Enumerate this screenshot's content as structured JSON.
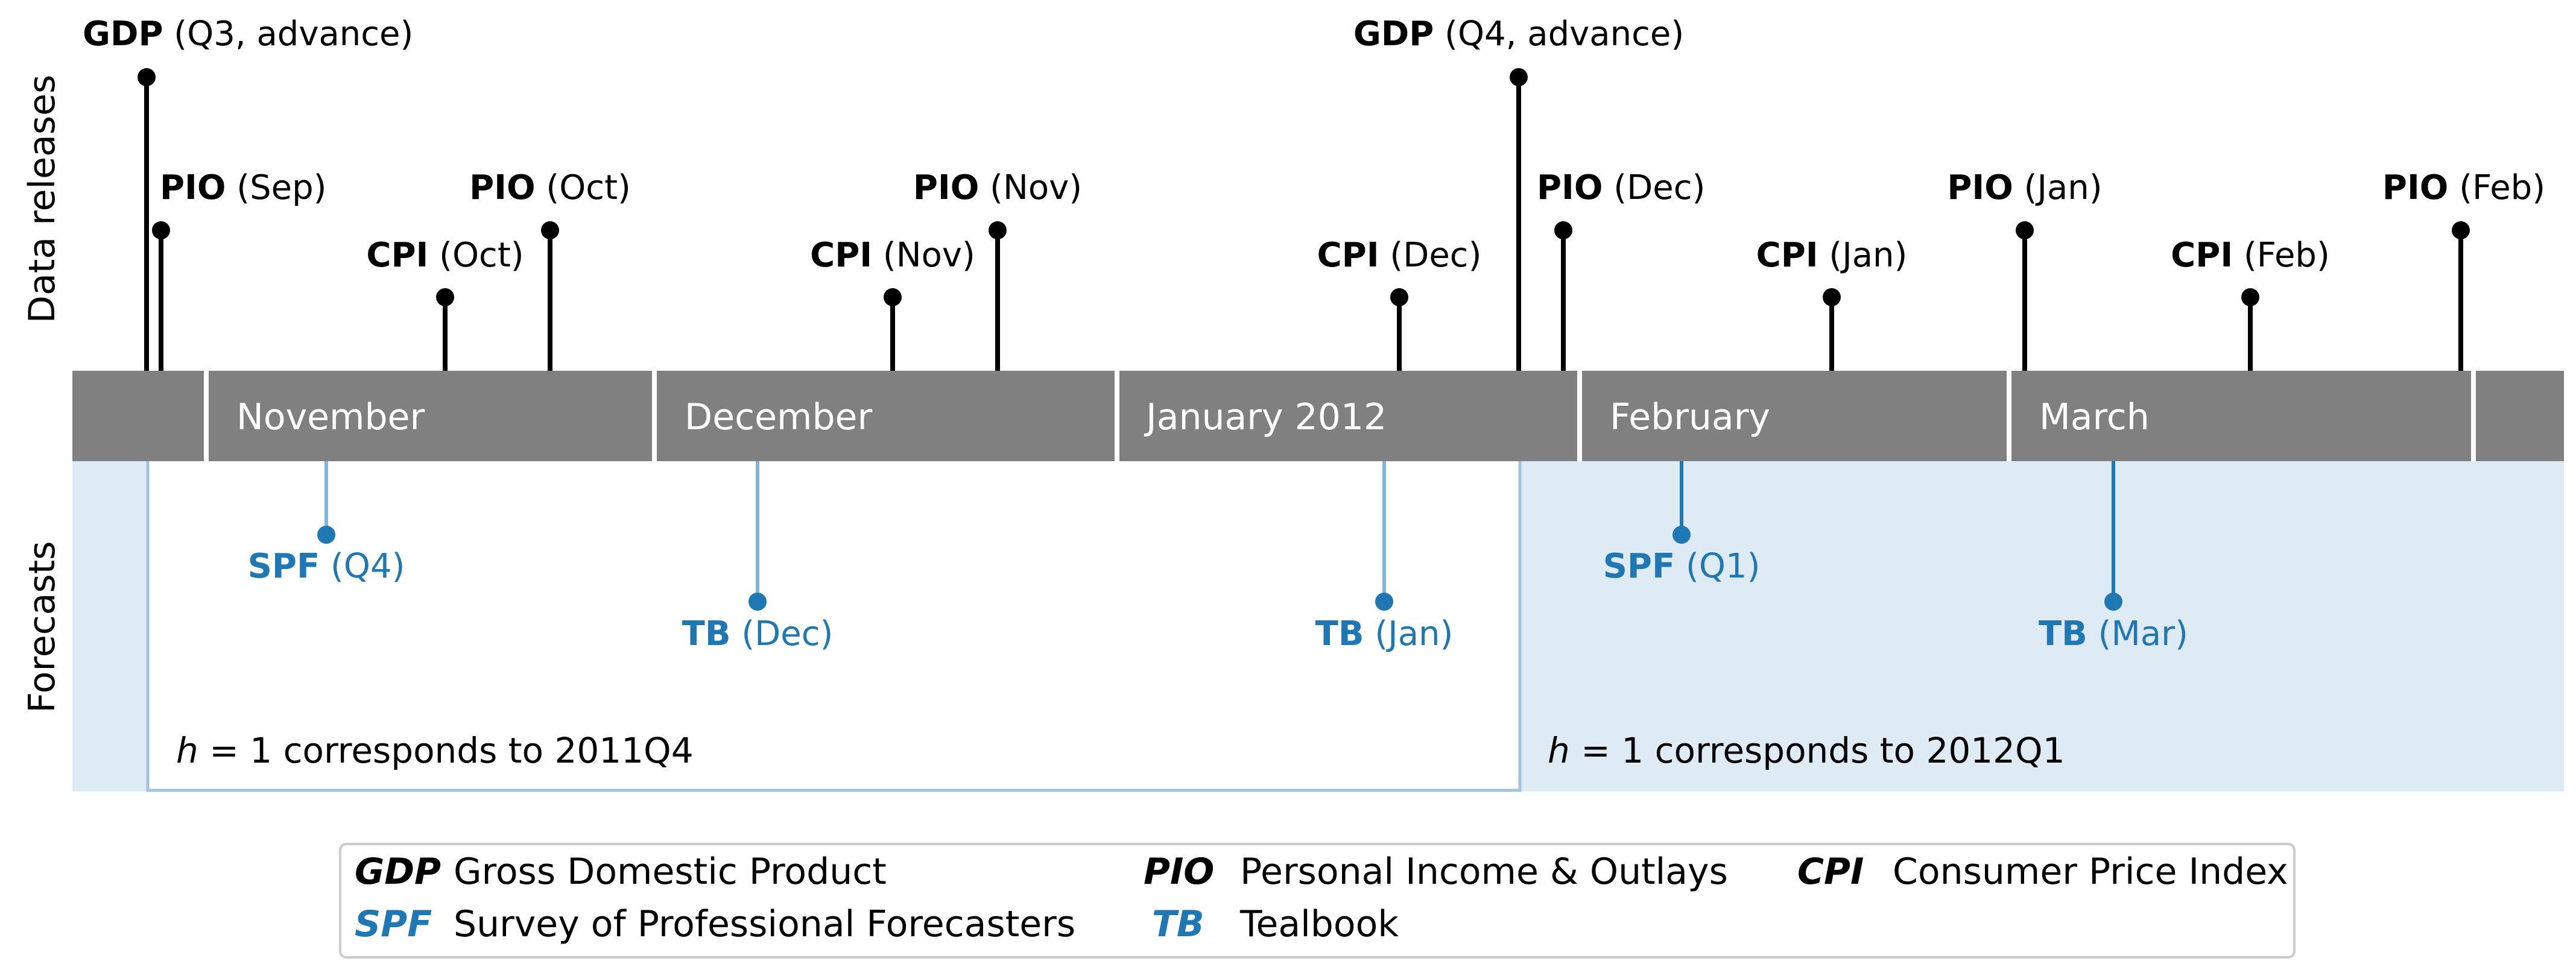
{
  "axis_labels": {
    "top": "Data releases",
    "bottom": "Forecasts"
  },
  "months": [
    {
      "label": ""
    },
    {
      "label": "November"
    },
    {
      "label": "December"
    },
    {
      "label": "January 2012"
    },
    {
      "label": "February"
    },
    {
      "label": "March"
    },
    {
      "label": ""
    }
  ],
  "releases": [
    {
      "abbr": "GDP",
      "detail": " (Q3, advance)"
    },
    {
      "abbr": "PIO",
      "detail": " (Sep)"
    },
    {
      "abbr": "CPI",
      "detail": " (Oct)"
    },
    {
      "abbr": "PIO",
      "detail": " (Oct)"
    },
    {
      "abbr": "CPI",
      "detail": " (Nov)"
    },
    {
      "abbr": "PIO",
      "detail": " (Nov)"
    },
    {
      "abbr": "CPI",
      "detail": " (Dec)"
    },
    {
      "abbr": "GDP",
      "detail": " (Q4, advance)"
    },
    {
      "abbr": "PIO",
      "detail": " (Dec)"
    },
    {
      "abbr": "CPI",
      "detail": " (Jan)"
    },
    {
      "abbr": "PIO",
      "detail": " (Jan)"
    },
    {
      "abbr": "CPI",
      "detail": " (Feb)"
    },
    {
      "abbr": "PIO",
      "detail": " (Feb)"
    }
  ],
  "forecasts": [
    {
      "abbr": "SPF",
      "detail": " (Q4)"
    },
    {
      "abbr": "TB",
      "detail": " (Dec)"
    },
    {
      "abbr": "TB",
      "detail": " (Jan)"
    },
    {
      "abbr": "SPF",
      "detail": " (Q1)"
    },
    {
      "abbr": "TB",
      "detail": " (Mar)"
    }
  ],
  "horizons": [
    {
      "h": "h",
      "text": " = 1 corresponds to 2011Q4"
    },
    {
      "h": "h",
      "text": " = 1 corresponds to 2012Q1"
    }
  ],
  "legend": [
    {
      "abbr": "GDP",
      "text": "Gross Domestic Product",
      "color": "#000000"
    },
    {
      "abbr": "PIO",
      "text": "Personal Income & Outlays",
      "color": "#000000"
    },
    {
      "abbr": "CPI",
      "text": "Consumer Price Index",
      "color": "#000000"
    },
    {
      "abbr": "SPF",
      "text": "Survey of Professional Forecasters",
      "color": "#1f77b4"
    },
    {
      "abbr": "TB",
      "text": "Tealbook",
      "color": "#1f77b4"
    }
  ],
  "colors": {
    "month_bar": "#808080",
    "shade": "#deebf5",
    "forecast": "#1f77b4",
    "release": "#000000",
    "box_outline": "#9dc3e0"
  }
}
